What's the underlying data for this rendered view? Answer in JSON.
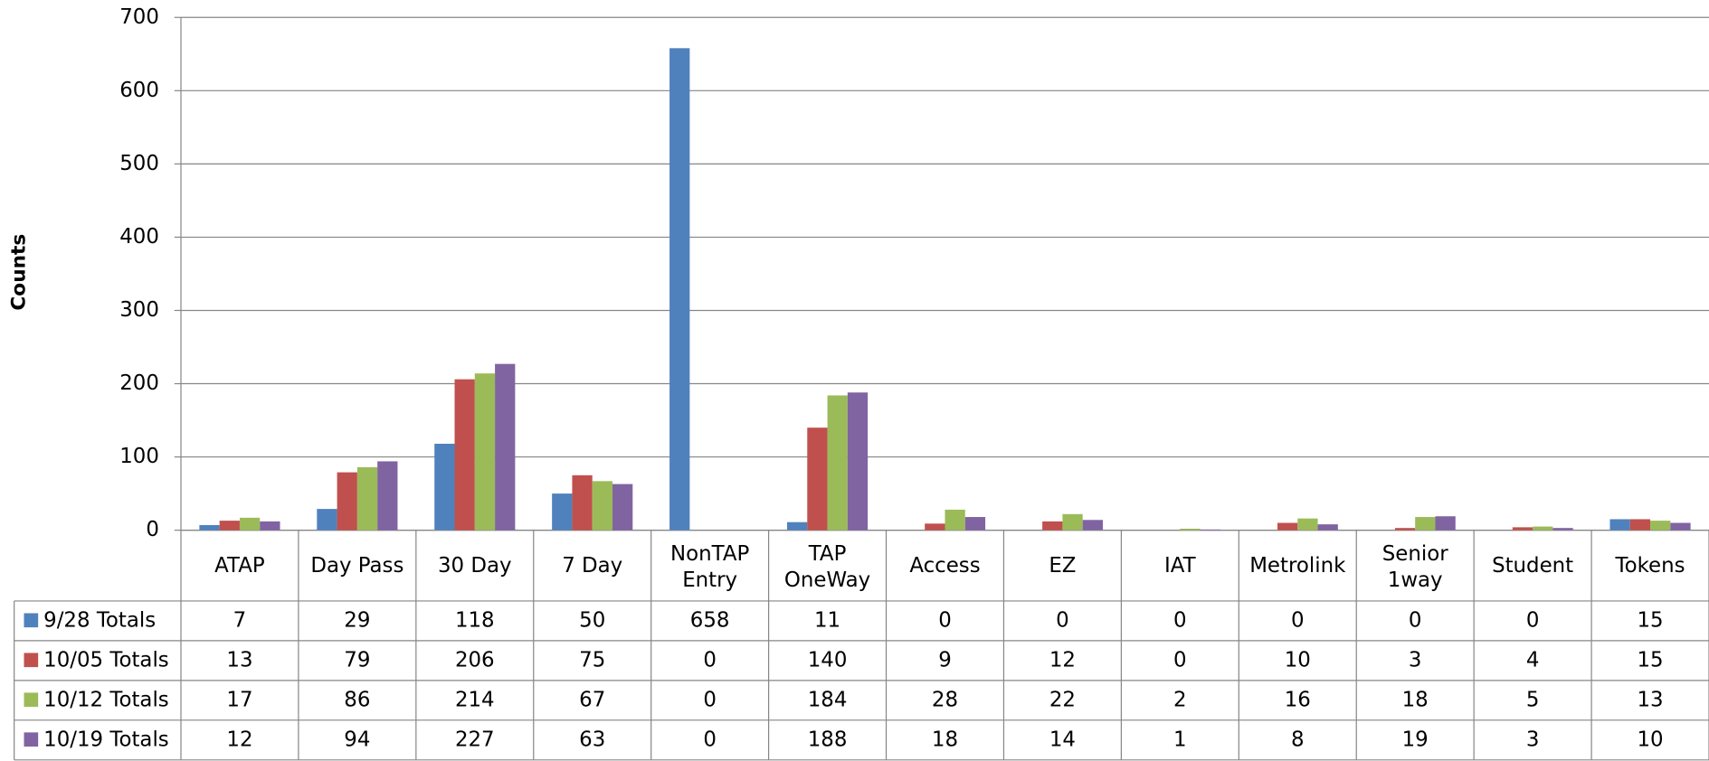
{
  "chart_data": {
    "type": "bar",
    "y_label": "Counts",
    "categories": [
      "ATAP",
      "Day Pass",
      "30 Day",
      "7 Day",
      "NonTAP\nEntry",
      "TAP\nOneWay",
      "Access",
      "EZ",
      "IAT",
      "Metrolink",
      "Senior\n1way",
      "Student",
      "Tokens"
    ],
    "series": [
      {
        "name": "9/28 Totals",
        "color": "#4f81bd",
        "values": [
          7,
          29,
          118,
          50,
          658,
          11,
          0,
          0,
          0,
          0,
          0,
          0,
          15
        ]
      },
      {
        "name": "10/05 Totals",
        "color": "#c0504d",
        "values": [
          13,
          79,
          206,
          75,
          0,
          140,
          9,
          12,
          0,
          10,
          3,
          4,
          15
        ]
      },
      {
        "name": "10/12 Totals",
        "color": "#9bbb59",
        "values": [
          17,
          86,
          214,
          67,
          0,
          184,
          28,
          22,
          2,
          16,
          18,
          5,
          13
        ]
      },
      {
        "name": "10/19 Totals",
        "color": "#8064a2",
        "values": [
          12,
          94,
          227,
          63,
          0,
          188,
          18,
          14,
          1,
          8,
          19,
          3,
          10
        ]
      }
    ],
    "ylim": [
      0,
      700
    ],
    "yticks": [
      0,
      100,
      200,
      300,
      400,
      500,
      600,
      700
    ],
    "grid": true
  }
}
